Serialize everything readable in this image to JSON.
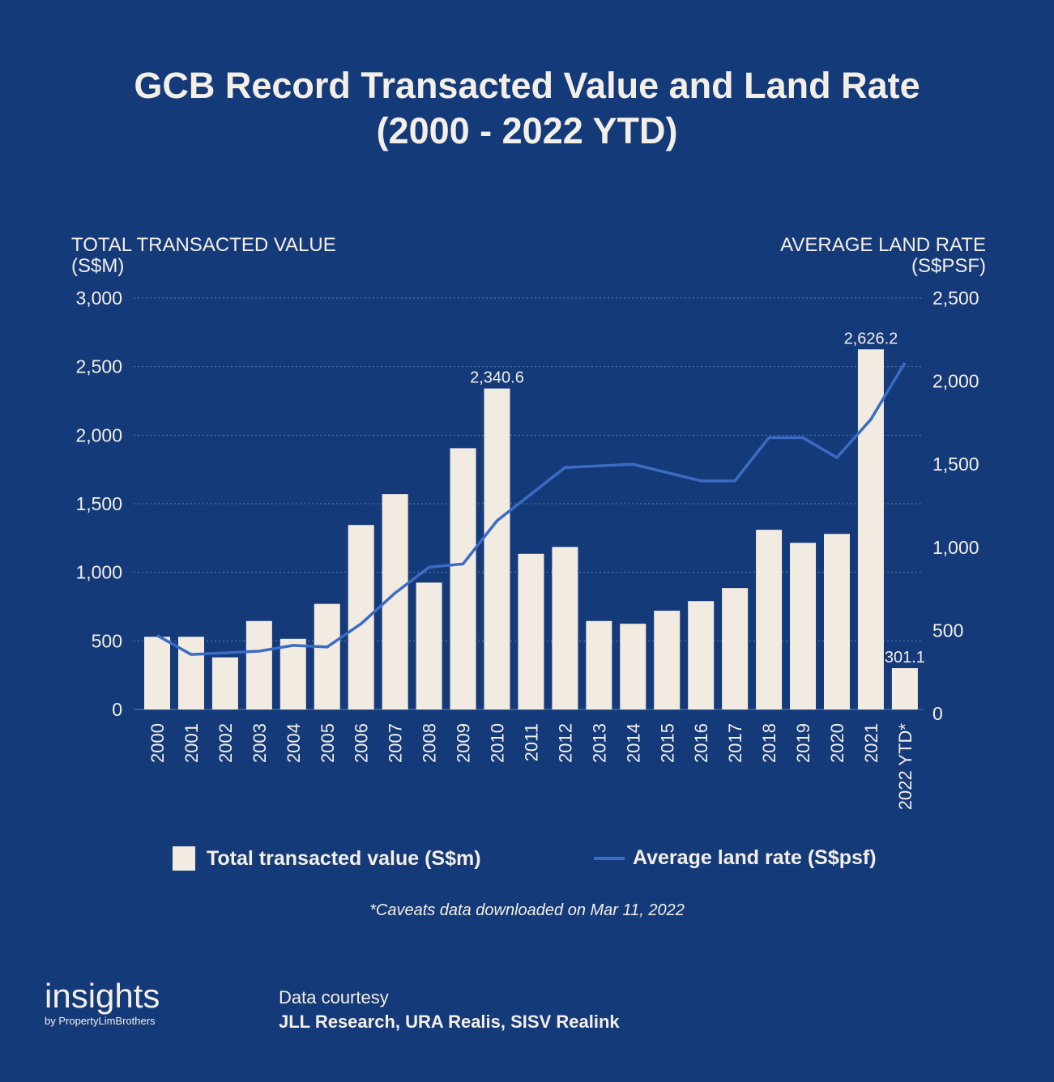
{
  "page": {
    "title_line1": "GCB Record Transacted Value and Land Rate",
    "title_line2": "(2000 - 2022 YTD)",
    "footnote": "*Caveats data downloaded on Mar 11, 2022",
    "brand": {
      "name": "insights",
      "tagline": "by PropertyLimBrothers"
    },
    "source": {
      "label": "Data courtesy",
      "value": "JLL Research, URA Realis, SISV Realink"
    }
  },
  "chart_data": {
    "type": "bar",
    "left_axis_label": [
      "TOTAL TRANSACTED VALUE",
      "(S$M)"
    ],
    "right_axis_label": [
      "AVERAGE LAND RATE",
      "(S$PSF)"
    ],
    "categories": [
      "2000",
      "2001",
      "2002",
      "2003",
      "2004",
      "2005",
      "2006",
      "2007",
      "2008",
      "2009",
      "2010",
      "2011",
      "2012",
      "2013",
      "2014",
      "2015",
      "2016",
      "2017",
      "2018",
      "2019",
      "2020",
      "2021",
      "2022 YTD*"
    ],
    "series": [
      {
        "name": "Total transacted value (S$m)",
        "type": "bar",
        "axis": "left",
        "values": [
          530,
          530,
          380,
          645,
          515,
          770,
          1345,
          1570,
          925,
          1905,
          2340.6,
          1135,
          1185,
          645,
          625,
          720,
          790,
          885,
          1310,
          1215,
          1280,
          2626.2,
          301.1
        ]
      },
      {
        "name": "Average land rate (S$psf)",
        "type": "line",
        "axis": "right",
        "values": [
          470,
          355,
          365,
          375,
          410,
          400,
          540,
          725,
          880,
          900,
          1160,
          1320,
          1480,
          1490,
          1500,
          1450,
          1400,
          1400,
          1660,
          1660,
          1540,
          1770,
          2110
        ]
      }
    ],
    "data_labels": [
      {
        "index": 10,
        "text": "2,340.6"
      },
      {
        "index": 21,
        "text": "2,626.2"
      },
      {
        "index": 22,
        "text": "301.1"
      }
    ],
    "left_ticks": [
      "0",
      "500",
      "1,000",
      "1,500",
      "2,000",
      "2,500",
      "3,000"
    ],
    "right_ticks": [
      "0",
      "500",
      "1,000",
      "1,500",
      "2,000",
      "2,500"
    ],
    "left_ylim": [
      0,
      3000
    ],
    "right_ylim": [
      0,
      2500
    ],
    "grid": true,
    "legend_position": "bottom",
    "colors": {
      "background": "#143a7a",
      "bar": "#f1ebe1",
      "line": "#3a6cc4",
      "text": "#f4efe6",
      "grid": "#5a7cb6"
    }
  }
}
